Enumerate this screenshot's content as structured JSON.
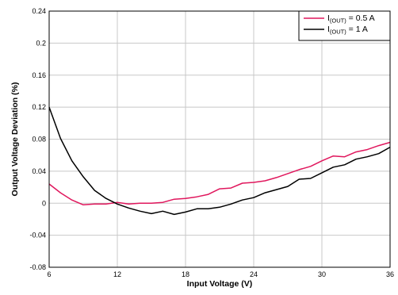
{
  "chart_data": {
    "type": "line",
    "title": "",
    "xlabel": "Input Voltage (V)",
    "ylabel": "Output Voltage Deviation (%)",
    "xlim": [
      6,
      36
    ],
    "ylim": [
      -0.08,
      0.24
    ],
    "xticks": [
      6,
      12,
      18,
      24,
      30,
      36
    ],
    "yticks": [
      -0.08,
      -0.04,
      0,
      0.04,
      0.08,
      0.12,
      0.16,
      0.2,
      0.24
    ],
    "ytick_labels": [
      "-0.08",
      "-0.04",
      "0",
      "0.04",
      "0.08",
      "0.12",
      "0.16",
      "0.2",
      "0.24"
    ],
    "grid": true,
    "legend_position": "top-right",
    "series": [
      {
        "label_main": "I",
        "label_sub": "(OUT)",
        "label_rest": " = 0.5 A",
        "color": "#e0175d",
        "x": [
          6,
          7,
          8,
          9,
          10,
          11,
          12,
          13,
          14,
          15,
          16,
          17,
          18,
          19,
          20,
          21,
          22,
          23,
          24,
          25,
          26,
          27,
          28,
          29,
          30,
          31,
          32,
          33,
          34,
          35,
          36
        ],
        "y": [
          0.024,
          0.013,
          0.004,
          -0.002,
          -0.001,
          -0.001,
          0.001,
          -0.001,
          0.0,
          0.0,
          0.001,
          0.005,
          0.006,
          0.008,
          0.011,
          0.018,
          0.019,
          0.025,
          0.026,
          0.028,
          0.032,
          0.037,
          0.042,
          0.046,
          0.053,
          0.059,
          0.058,
          0.064,
          0.067,
          0.072,
          0.076
        ]
      },
      {
        "label_main": "I",
        "label_sub": "(OUT)",
        "label_rest": " = 1 A",
        "color": "#000000",
        "x": [
          6,
          7,
          8,
          9,
          10,
          11,
          12,
          13,
          14,
          15,
          16,
          17,
          18,
          19,
          20,
          21,
          22,
          23,
          24,
          25,
          26,
          27,
          28,
          29,
          30,
          31,
          32,
          33,
          34,
          35,
          36
        ],
        "y": [
          0.12,
          0.081,
          0.053,
          0.033,
          0.016,
          0.006,
          -0.001,
          -0.006,
          -0.01,
          -0.013,
          -0.01,
          -0.014,
          -0.011,
          -0.007,
          -0.007,
          -0.005,
          -0.001,
          0.004,
          0.007,
          0.013,
          0.017,
          0.021,
          0.03,
          0.031,
          0.038,
          0.045,
          0.048,
          0.055,
          0.058,
          0.062,
          0.07
        ]
      }
    ]
  }
}
